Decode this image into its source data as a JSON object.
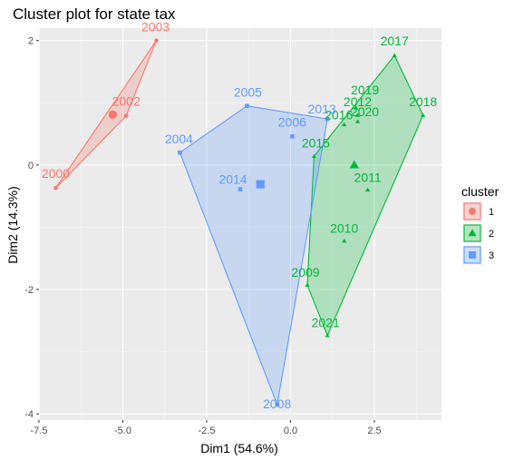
{
  "chart_data": {
    "type": "scatter",
    "title": "Cluster plot for state tax",
    "xlabel": "Dim1 (54.6%)",
    "ylabel": "Dim2 (14.3%)",
    "xlim": [
      -7.5,
      4.5
    ],
    "ylim": [
      -4.1,
      2.2
    ],
    "xticks": [
      -7.5,
      -5.0,
      -2.5,
      0.0,
      2.5
    ],
    "xtick_labels": [
      "-7.5",
      "-5.0",
      "-2.5",
      "0.0",
      "2.5"
    ],
    "yticks": [
      -4,
      -2,
      0,
      2
    ],
    "ytick_labels": [
      "-4",
      "-2",
      "0",
      "2"
    ],
    "grid": true,
    "legend": {
      "title": "cluster",
      "placement": "right",
      "entries": [
        "1",
        "2",
        "3"
      ]
    },
    "clusters": [
      {
        "name": "1",
        "color": "#F8766D",
        "shape": "circle",
        "hull": [
          "2003",
          "2002",
          "2000"
        ],
        "center": [
          -5.3,
          0.81
        ],
        "points": [
          {
            "label": "2000",
            "x": -7.0,
            "y": -0.37
          },
          {
            "label": "2002",
            "x": -4.9,
            "y": 0.79
          },
          {
            "label": "2003",
            "x": -4.0,
            "y": 2.0
          }
        ]
      },
      {
        "name": "2",
        "color": "#00BA38",
        "shape": "triangle",
        "hull": [
          "2017",
          "2018",
          "2021",
          "2009",
          "2015"
        ],
        "center": [
          1.9,
          0.0
        ],
        "points": [
          {
            "label": "2009",
            "x": 0.5,
            "y": -1.93
          },
          {
            "label": "2010",
            "x": 1.6,
            "y": -1.22
          },
          {
            "label": "2011",
            "x": 2.3,
            "y": -0.4
          },
          {
            "label": "2012",
            "x": 2.0,
            "y": 0.8
          },
          {
            "label": "2015",
            "x": 0.7,
            "y": 0.14
          },
          {
            "label": "2016",
            "x": 1.6,
            "y": 0.65
          },
          {
            "label": "2017",
            "x": 3.1,
            "y": 1.76
          },
          {
            "label": "2018",
            "x": 3.95,
            "y": 0.8
          },
          {
            "label": "2019",
            "x": 1.95,
            "y": 0.92
          },
          {
            "label": "2020",
            "x": 2.0,
            "y": 0.7
          },
          {
            "label": "2021",
            "x": 1.1,
            "y": -2.74
          }
        ]
      },
      {
        "name": "3",
        "color": "#619CFF",
        "shape": "square",
        "hull": [
          "2005",
          "2013",
          "2008",
          "2004"
        ],
        "center": [
          -0.9,
          -0.31
        ],
        "points": [
          {
            "label": "2004",
            "x": -3.3,
            "y": 0.2
          },
          {
            "label": "2005",
            "x": -1.3,
            "y": 0.95
          },
          {
            "label": "2006",
            "x": 0.05,
            "y": 0.46
          },
          {
            "label": "2008",
            "x": -0.4,
            "y": -3.85
          },
          {
            "label": "2013",
            "x": 1.1,
            "y": 0.74
          },
          {
            "label": "2014",
            "x": -1.5,
            "y": -0.39
          }
        ]
      }
    ]
  }
}
